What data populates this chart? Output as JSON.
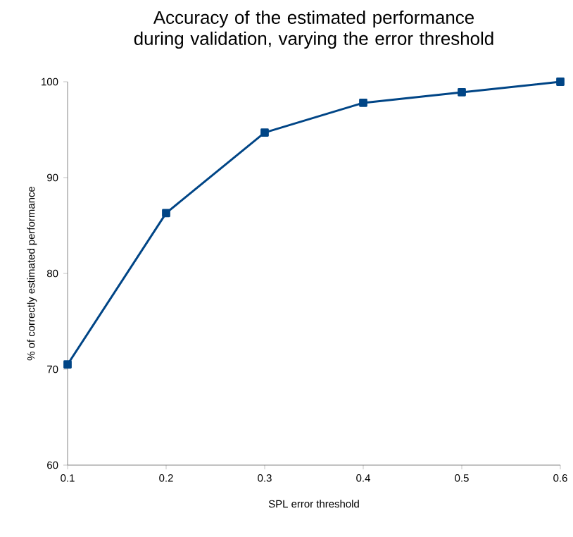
{
  "chart_data": {
    "type": "line",
    "title": "Accuracy of the estimated performance during validation, varying the error threshold",
    "xlabel": "SPL error threshold",
    "ylabel": "% of correctly estimated performance",
    "x": [
      0.1,
      0.2,
      0.3,
      0.4,
      0.5,
      0.6
    ],
    "series": [
      {
        "color": "#004586",
        "values": [
          70.5,
          86.3,
          94.7,
          97.8,
          98.9,
          100
        ]
      }
    ],
    "xlim": [
      0.1,
      0.6
    ],
    "xticks": [
      0.1,
      0.2,
      0.3,
      0.4,
      0.5,
      0.6
    ],
    "ylim": [
      60,
      100
    ],
    "yticks": [
      60,
      70,
      80,
      90,
      100
    ],
    "marker": "square",
    "line_style": "solid"
  }
}
